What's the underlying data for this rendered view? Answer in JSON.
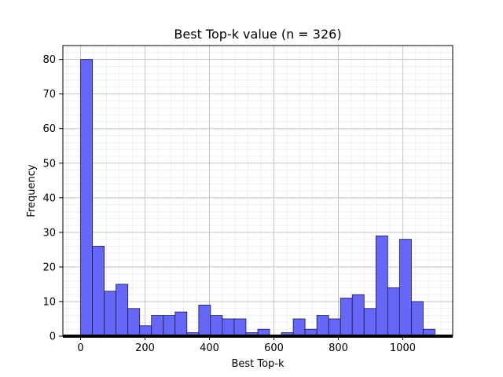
{
  "chart_data": {
    "type": "bar",
    "title": "Best Top-k value (n = 326)",
    "xlabel": "Best Top-k",
    "ylabel": "Frequency",
    "bin_edges": [
      0,
      36.7,
      73.3,
      110,
      146.7,
      183.3,
      220,
      256.7,
      293.3,
      330,
      366.7,
      403.3,
      440,
      476.7,
      513.3,
      550,
      586.7,
      623.3,
      660,
      696.7,
      733.3,
      770,
      806.7,
      843.3,
      880,
      916.7,
      953.3,
      990,
      1026.7,
      1063.3,
      1100
    ],
    "values": [
      80,
      26,
      13,
      15,
      8,
      3,
      6,
      6,
      7,
      1,
      9,
      6,
      5,
      5,
      1,
      2,
      0,
      1,
      5,
      2,
      6,
      5,
      11,
      12,
      8,
      29,
      14,
      28,
      10,
      2
    ],
    "xlim": [
      -55,
      1155
    ],
    "ylim": [
      0,
      84
    ],
    "xticks": [
      0,
      200,
      400,
      600,
      800,
      1000
    ],
    "yticks": [
      0,
      10,
      20,
      30,
      40,
      50,
      60,
      70,
      80
    ],
    "grid": true,
    "minor_grid": true,
    "colors": {
      "bar_fill": "#6666f7",
      "bar_edge": "#1a1a40",
      "major_grid": "#c4c4c4",
      "minor_grid": "#e6e6e6"
    }
  }
}
